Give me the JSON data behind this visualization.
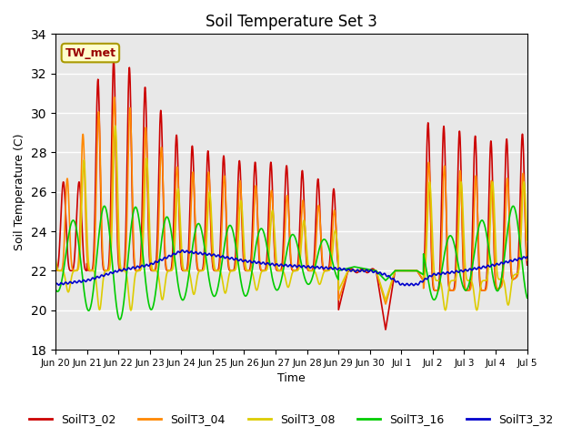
{
  "title": "Soil Temperature Set 3",
  "xlabel": "Time",
  "ylabel": "Soil Temperature (C)",
  "ylim": [
    18,
    34
  ],
  "yticks": [
    18,
    20,
    22,
    24,
    26,
    28,
    30,
    32,
    34
  ],
  "annotation": "TW_met",
  "bg_color": "#e8e8e8",
  "grid_color": "#ffffff",
  "series_colors": {
    "SoilT3_02": "#cc0000",
    "SoilT3_04": "#ff8800",
    "SoilT3_08": "#ddcc00",
    "SoilT3_16": "#00cc00",
    "SoilT3_32": "#0000cc"
  },
  "xtick_labels": [
    "Jun 20",
    "Jun 21",
    "Jun 22",
    "Jun 23",
    "Jun 24",
    "Jun 25",
    "Jun 26",
    "Jun 27",
    "Jun 28",
    "Jun 29",
    "Jun 30",
    "Jul 1",
    "Jul 2",
    "Jul 3",
    "Jul 4",
    "Jul 5"
  ],
  "xtick_positions": [
    0,
    1,
    2,
    3,
    4,
    5,
    6,
    7,
    8,
    9,
    10,
    11,
    12,
    13,
    14,
    15
  ]
}
